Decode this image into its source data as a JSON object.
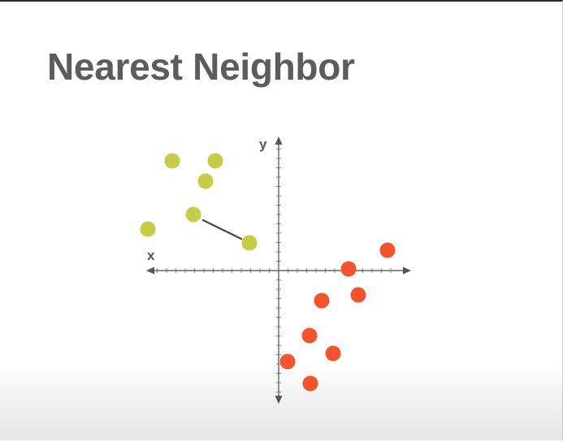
{
  "slide": {
    "title": "Nearest Neighbor"
  },
  "diagram": {
    "x_axis_label": "x",
    "y_axis_label": "y",
    "colors": {
      "class_a": "#c5cc45",
      "class_b": "#f4532b",
      "axis": "#666666",
      "link": "#444444",
      "title": "#5c5c5c"
    }
  }
}
